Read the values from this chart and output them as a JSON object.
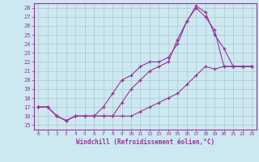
{
  "background_color": "#cce8f0",
  "grid_color": "#b0c8d0",
  "line_color": "#993399",
  "spine_color": "#993399",
  "xlim": [
    -0.5,
    23.5
  ],
  "ylim": [
    14.5,
    28.5
  ],
  "xlabel": "Windchill (Refroidissement éolien,°C)",
  "ytick_vals": [
    15,
    16,
    17,
    18,
    19,
    20,
    21,
    22,
    23,
    24,
    25,
    26,
    27,
    28
  ],
  "xtick_vals": [
    0,
    1,
    2,
    3,
    4,
    5,
    6,
    7,
    8,
    9,
    10,
    11,
    12,
    13,
    14,
    15,
    16,
    17,
    18,
    19,
    20,
    21,
    22,
    23
  ],
  "lines": [
    {
      "x": [
        0,
        1,
        2,
        3,
        4,
        5,
        6,
        7,
        8,
        9,
        10,
        11,
        12,
        13,
        14,
        15,
        16,
        17,
        18,
        19,
        20,
        21,
        22,
        23
      ],
      "y": [
        17.0,
        17.0,
        16.0,
        15.5,
        16.0,
        16.0,
        16.0,
        16.0,
        16.0,
        16.0,
        16.0,
        16.5,
        17.0,
        17.5,
        18.0,
        18.5,
        19.5,
        20.5,
        21.5,
        21.2,
        21.5,
        21.5,
        21.5,
        21.5
      ]
    },
    {
      "x": [
        0,
        1,
        2,
        3,
        4,
        5,
        6,
        7,
        8,
        9,
        10,
        11,
        12,
        13,
        14,
        15,
        16,
        17,
        18,
        19,
        20,
        21,
        22,
        23
      ],
      "y": [
        17.0,
        17.0,
        16.0,
        15.5,
        16.0,
        16.0,
        16.0,
        16.0,
        16.0,
        17.5,
        19.0,
        20.0,
        21.0,
        21.5,
        22.0,
        24.5,
        26.5,
        28.0,
        27.0,
        25.5,
        21.5,
        21.5,
        21.5,
        21.5
      ]
    },
    {
      "x": [
        0,
        1,
        2,
        3,
        4,
        5,
        6,
        7,
        8,
        9,
        10,
        11,
        12,
        13,
        14,
        15,
        16,
        17,
        18,
        19,
        20,
        21,
        22,
        23
      ],
      "y": [
        17.0,
        17.0,
        16.0,
        15.5,
        16.0,
        16.0,
        16.0,
        17.0,
        18.5,
        20.0,
        20.5,
        21.5,
        22.0,
        22.0,
        22.5,
        24.0,
        26.5,
        28.2,
        27.5,
        25.0,
        23.5,
        21.5,
        21.5,
        21.5
      ]
    }
  ]
}
